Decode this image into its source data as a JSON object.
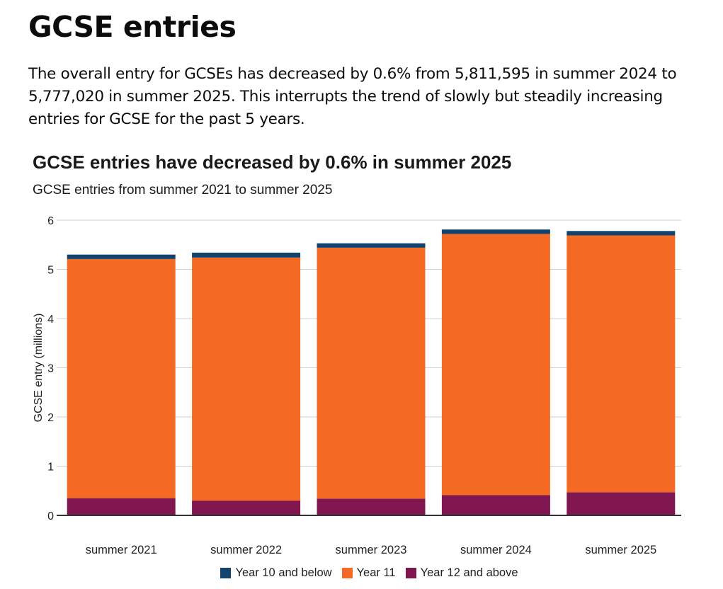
{
  "page": {
    "heading": "GCSE entries",
    "intro": "The overall entry for GCSEs has decreased by 0.6% from 5,811,595 in summer 2024 to 5,777,020 in summer 2025. This interrupts the trend of slowly but steadily increasing entries for GCSE for the past 5 years."
  },
  "chart_data": {
    "type": "bar",
    "stacked": true,
    "title": "GCSE entries have decreased by 0.6% in summer 2025",
    "subtitle": "GCSE entries from summer 2021 to summer 2025",
    "xlabel": "",
    "ylabel": "GCSE entry (millions)",
    "ylim": [
      0,
      6
    ],
    "yticks": [
      0,
      1,
      2,
      3,
      4,
      5,
      6
    ],
    "grid": true,
    "legend_position": "bottom",
    "categories": [
      "summer 2021",
      "summer 2022",
      "summer 2023",
      "summer 2024",
      "summer 2025"
    ],
    "series": [
      {
        "name": "Year 12 and above",
        "color": "#801650",
        "values": [
          0.35,
          0.3,
          0.34,
          0.41,
          0.47
        ]
      },
      {
        "name": "Year 11",
        "color": "#f46a25",
        "values": [
          4.86,
          4.94,
          5.1,
          5.31,
          5.22
        ]
      },
      {
        "name": "Year 10 and below",
        "color": "#12436d",
        "values": [
          0.09,
          0.1,
          0.09,
          0.09,
          0.09
        ]
      }
    ],
    "legend_order": [
      "Year 10 and below",
      "Year 11",
      "Year 12 and above"
    ]
  }
}
